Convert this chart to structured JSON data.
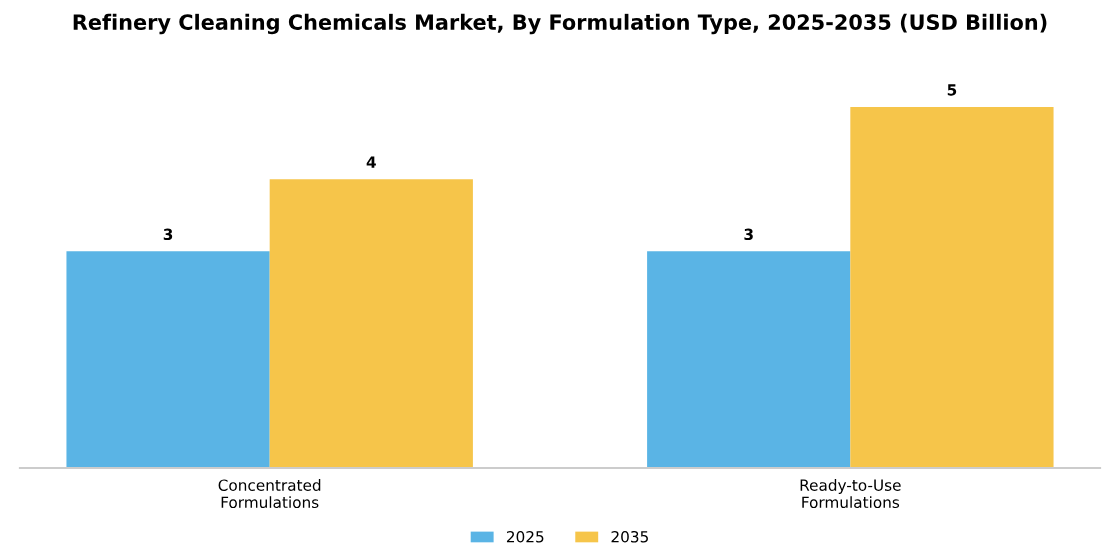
{
  "chart_data": {
    "type": "bar",
    "title": "Refinery Cleaning Chemicals Market, By Formulation Type, 2025-2035 (USD Billion)",
    "categories": [
      "Concentrated\nFormulations",
      "Ready-to-Use\nFormulations"
    ],
    "series": [
      {
        "name": "2025",
        "color": "#5ab4e5",
        "values": [
          3,
          3
        ]
      },
      {
        "name": "2035",
        "color": "#f6c54a",
        "values": [
          4,
          5
        ]
      }
    ],
    "data_labels": true,
    "legend": "bottom",
    "grid": false
  }
}
